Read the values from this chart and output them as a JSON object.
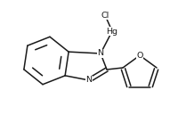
{
  "bg_color": "#ffffff",
  "line_color": "#1a1a1a",
  "line_width": 1.1,
  "font_size": 6.8,
  "label_Cl": "Cl",
  "label_Hg": "Hg",
  "label_N1": "N",
  "label_N2": "N",
  "label_O": "O",
  "xlim": [
    0,
    191
  ],
  "ylim": [
    0,
    129
  ]
}
